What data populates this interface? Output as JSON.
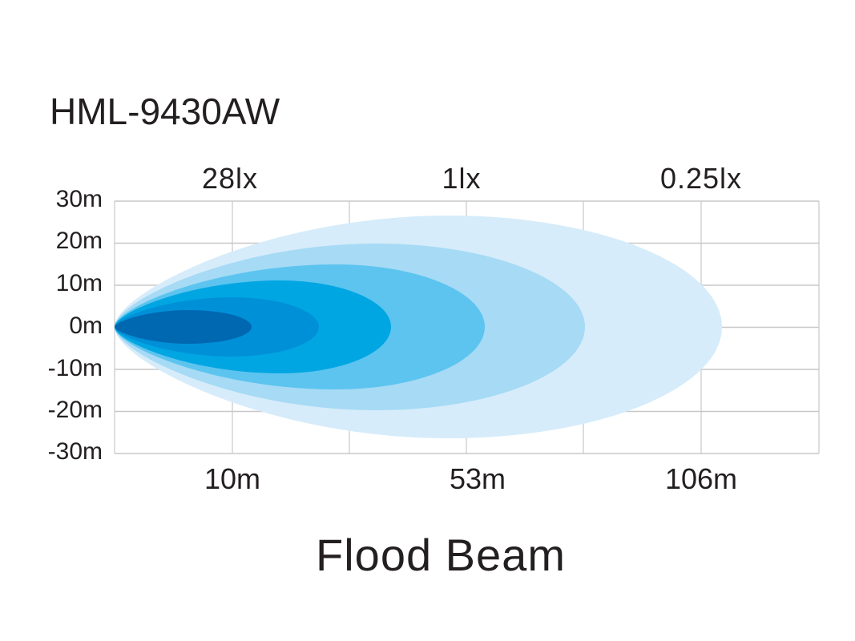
{
  "chart_data": {
    "type": "area",
    "title": "HML-9430AW",
    "caption": "Flood Beam",
    "lux_labels": [
      "28lx",
      "1lx",
      "0.25lx"
    ],
    "y_tick_labels": [
      "30m",
      "20m",
      "10m",
      "0m",
      "-10m",
      "-20m",
      "-30m"
    ],
    "x_tick_labels": [
      "10m",
      "53m",
      "106m"
    ],
    "grid": true,
    "layer_colors": [
      "#d6ecfa",
      "#a6daf5",
      "#5cc4ef",
      "#00a6e2",
      "#0090d8",
      "#0067b1"
    ]
  }
}
